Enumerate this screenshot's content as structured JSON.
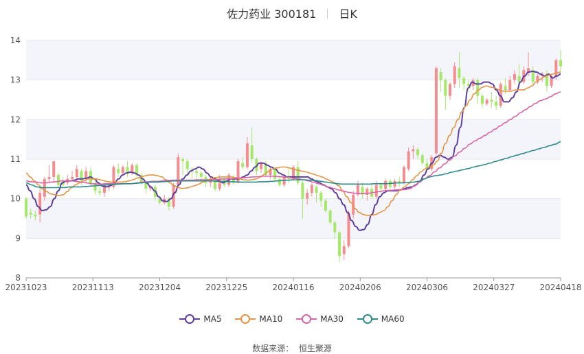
{
  "title": {
    "name": "佐力药业 300181",
    "period": "日K"
  },
  "source": {
    "label": "数据来源：",
    "value": "恒生聚源"
  },
  "colors": {
    "up": "#f48d8f",
    "down": "#a5e86a",
    "MA5": "#5e3e9e",
    "MA10": "#e39545",
    "MA30": "#d865a7",
    "MA60": "#2d8a8a"
  },
  "chart_data": {
    "type": "candlestick",
    "ylim": [
      8,
      14
    ],
    "y_ticks": [
      "8",
      "9",
      "10",
      "11",
      "12",
      "13",
      "14"
    ],
    "x_ticks": [
      "20231023",
      "20231113",
      "20231204",
      "20231225",
      "20240116",
      "20240206",
      "20240306",
      "20240327",
      "20240418"
    ],
    "legend": [
      "MA5",
      "MA10",
      "MA30",
      "MA60"
    ],
    "legend_position": "bottom",
    "grid": true,
    "candles": [
      [
        10.0,
        9.55,
        10.05,
        9.5
      ],
      [
        9.65,
        9.6,
        9.75,
        9.5
      ],
      [
        9.6,
        9.55,
        9.7,
        9.45
      ],
      [
        9.6,
        10.15,
        10.3,
        9.4
      ],
      [
        10.05,
        10.5,
        10.55,
        9.95
      ],
      [
        10.5,
        10.55,
        10.85,
        10.4
      ],
      [
        10.55,
        10.95,
        10.95,
        10.4
      ],
      [
        10.6,
        10.35,
        10.65,
        10.3
      ],
      [
        10.45,
        10.35,
        10.55,
        10.3
      ],
      [
        10.4,
        10.5,
        10.6,
        10.35
      ],
      [
        10.5,
        10.55,
        10.7,
        10.45
      ],
      [
        10.55,
        10.75,
        10.85,
        10.4
      ],
      [
        10.7,
        10.45,
        10.75,
        10.35
      ],
      [
        10.5,
        10.7,
        10.8,
        10.4
      ],
      [
        10.7,
        10.4,
        10.8,
        10.35
      ],
      [
        10.4,
        10.2,
        10.45,
        10.1
      ],
      [
        10.2,
        10.15,
        10.3,
        10.05
      ],
      [
        10.15,
        10.35,
        10.4,
        10.05
      ],
      [
        10.3,
        10.3,
        10.4,
        10.2
      ],
      [
        10.3,
        10.8,
        10.85,
        10.25
      ],
      [
        10.75,
        10.65,
        10.9,
        10.55
      ],
      [
        10.65,
        10.8,
        10.85,
        10.6
      ],
      [
        10.8,
        10.65,
        10.95,
        10.55
      ],
      [
        10.65,
        10.85,
        10.9,
        10.6
      ],
      [
        10.85,
        10.6,
        10.9,
        10.55
      ],
      [
        10.6,
        10.4,
        10.65,
        10.35
      ],
      [
        10.4,
        10.25,
        10.45,
        10.15
      ],
      [
        10.25,
        10.3,
        10.35,
        10.2
      ],
      [
        10.3,
        10.05,
        10.35,
        9.95
      ],
      [
        10.0,
        9.9,
        10.05,
        9.85
      ],
      [
        9.9,
        10.0,
        10.1,
        9.85
      ],
      [
        10.0,
        9.8,
        10.05,
        9.7
      ],
      [
        9.8,
        10.35,
        10.4,
        9.75
      ],
      [
        10.35,
        11.05,
        11.15,
        10.3
      ],
      [
        11.0,
        10.95,
        11.05,
        10.6
      ],
      [
        10.95,
        10.75,
        11.0,
        10.6
      ],
      [
        10.75,
        10.7,
        10.8,
        10.5
      ],
      [
        10.7,
        10.65,
        10.75,
        10.45
      ],
      [
        10.65,
        10.55,
        10.7,
        10.4
      ],
      [
        10.55,
        10.4,
        10.6,
        10.3
      ],
      [
        10.4,
        10.5,
        10.55,
        10.3
      ],
      [
        10.5,
        10.25,
        10.55,
        10.2
      ],
      [
        10.25,
        10.5,
        10.6,
        10.2
      ],
      [
        10.5,
        10.35,
        10.55,
        10.3
      ],
      [
        10.35,
        10.6,
        10.65,
        10.3
      ],
      [
        10.55,
        10.4,
        10.6,
        10.35
      ],
      [
        10.4,
        10.95,
        11.0,
        10.4
      ],
      [
        10.9,
        10.8,
        11.05,
        10.75
      ],
      [
        10.8,
        11.4,
        11.55,
        10.75
      ],
      [
        11.35,
        11.0,
        11.8,
        10.9
      ],
      [
        11.0,
        10.7,
        11.05,
        10.6
      ],
      [
        10.75,
        10.9,
        10.95,
        10.65
      ],
      [
        10.9,
        10.6,
        10.95,
        10.55
      ],
      [
        10.6,
        10.75,
        10.8,
        10.5
      ],
      [
        10.75,
        10.5,
        10.8,
        10.45
      ],
      [
        10.5,
        10.35,
        10.55,
        10.3
      ],
      [
        10.35,
        10.55,
        10.6,
        10.3
      ],
      [
        10.55,
        10.5,
        10.8,
        10.4
      ],
      [
        10.5,
        10.8,
        10.85,
        10.45
      ],
      [
        10.8,
        10.4,
        10.95,
        10.35
      ],
      [
        10.4,
        10.0,
        10.45,
        9.5
      ],
      [
        10.0,
        10.15,
        10.25,
        9.85
      ],
      [
        10.15,
        10.35,
        10.4,
        10.05
      ],
      [
        10.3,
        10.15,
        10.35,
        9.9
      ],
      [
        10.15,
        9.95,
        10.2,
        9.8
      ],
      [
        9.95,
        9.7,
        10.0,
        9.65
      ],
      [
        9.7,
        9.4,
        9.75,
        9.35
      ],
      [
        9.4,
        9.15,
        9.45,
        9.0
      ],
      [
        9.15,
        8.55,
        9.2,
        8.4
      ],
      [
        8.6,
        8.8,
        8.95,
        8.45
      ],
      [
        8.8,
        9.65,
        9.7,
        8.75
      ],
      [
        9.6,
        10.1,
        10.2,
        9.5
      ],
      [
        10.1,
        10.35,
        10.45,
        10.05
      ],
      [
        10.3,
        10.1,
        10.4,
        10.0
      ],
      [
        10.1,
        10.25,
        10.3,
        9.95
      ],
      [
        10.25,
        10.05,
        10.35,
        10.0
      ],
      [
        10.05,
        10.35,
        10.45,
        10.0
      ],
      [
        10.35,
        10.25,
        10.4,
        10.15
      ],
      [
        10.25,
        10.45,
        10.5,
        10.2
      ],
      [
        10.45,
        10.3,
        10.5,
        10.2
      ],
      [
        10.3,
        10.45,
        10.5,
        10.25
      ],
      [
        10.45,
        10.4,
        10.55,
        10.3
      ],
      [
        10.4,
        10.8,
        10.85,
        10.35
      ],
      [
        10.75,
        11.2,
        11.3,
        10.7
      ],
      [
        11.2,
        11.25,
        11.35,
        11.0
      ],
      [
        11.25,
        11.1,
        11.3,
        11.0
      ],
      [
        11.1,
        10.9,
        11.15,
        10.85
      ],
      [
        10.9,
        10.75,
        11.0,
        10.7
      ],
      [
        10.75,
        11.05,
        11.1,
        10.7
      ],
      [
        11.15,
        13.3,
        13.35,
        11.1
      ],
      [
        13.2,
        13.0,
        13.3,
        12.7
      ],
      [
        13.0,
        12.6,
        13.05,
        12.25
      ],
      [
        12.6,
        12.9,
        12.95,
        12.5
      ],
      [
        12.9,
        13.35,
        13.45,
        12.8
      ],
      [
        13.3,
        13.05,
        13.7,
        12.8
      ],
      [
        13.05,
        12.9,
        13.1,
        12.75
      ],
      [
        12.9,
        12.85,
        13.0,
        12.7
      ],
      [
        12.85,
        13.0,
        13.05,
        12.75
      ],
      [
        13.0,
        12.6,
        13.05,
        12.4
      ],
      [
        12.6,
        12.4,
        12.65,
        12.3
      ],
      [
        12.4,
        12.5,
        12.55,
        12.35
      ],
      [
        12.5,
        12.45,
        12.7,
        12.3
      ],
      [
        12.45,
        12.35,
        12.6,
        12.25
      ],
      [
        12.35,
        12.9,
        12.95,
        12.3
      ],
      [
        12.85,
        12.75,
        13.05,
        12.65
      ],
      [
        12.75,
        13.0,
        13.1,
        12.7
      ],
      [
        13.0,
        13.15,
        13.25,
        12.9
      ],
      [
        13.1,
        12.95,
        13.4,
        12.85
      ],
      [
        12.95,
        13.25,
        13.35,
        12.9
      ],
      [
        13.2,
        13.3,
        13.7,
        13.1
      ],
      [
        13.25,
        12.95,
        13.35,
        12.85
      ],
      [
        12.95,
        13.1,
        13.15,
        12.9
      ],
      [
        13.1,
        13.15,
        13.2,
        12.95
      ],
      [
        13.15,
        12.85,
        13.25,
        12.7
      ],
      [
        12.85,
        13.1,
        13.15,
        12.8
      ],
      [
        13.1,
        13.5,
        13.55,
        13.0
      ],
      [
        13.5,
        13.35,
        13.75,
        13.2
      ]
    ],
    "series": [
      {
        "name": "MA5",
        "values": [
          10.35,
          10.2,
          10.0,
          9.8,
          9.7,
          9.72,
          9.8,
          10.0,
          10.2,
          10.4,
          10.45,
          10.45,
          10.47,
          10.5,
          10.5,
          10.52,
          10.55,
          10.5,
          10.4,
          10.32,
          10.3,
          10.33,
          10.4,
          10.5,
          10.6,
          10.65,
          10.67,
          10.65,
          10.6,
          10.5,
          10.4,
          10.3,
          10.2,
          10.05,
          9.95,
          9.93,
          10.0,
          10.15,
          10.35,
          10.5,
          10.6,
          10.7,
          10.75,
          10.8,
          10.75,
          10.65,
          10.55,
          10.5,
          10.45,
          10.4,
          10.45,
          10.5,
          10.5,
          10.5,
          10.55,
          10.6,
          10.7,
          10.8,
          10.9,
          10.9,
          10.85,
          10.8,
          10.75,
          10.65,
          10.6,
          10.55,
          10.55,
          10.55,
          10.55,
          10.55,
          10.55,
          10.5,
          10.45,
          10.4,
          10.35,
          10.3,
          10.25,
          10.15,
          10.0,
          9.85,
          9.65,
          9.45,
          9.3,
          9.2,
          9.22,
          9.35,
          9.6,
          9.85,
          10.05,
          10.15,
          10.2,
          10.2,
          10.2,
          10.22,
          10.25,
          10.28,
          10.3,
          10.35,
          10.45,
          10.6,
          10.75,
          10.9,
          11.05,
          11.1,
          11.05,
          11.0,
          11.05,
          11.35,
          11.8,
          12.3,
          12.8,
          12.95,
          12.9,
          12.9,
          12.95,
          12.95,
          12.9,
          12.75,
          12.6,
          12.45,
          12.45,
          12.55,
          12.7,
          12.95,
          13.1,
          13.2,
          13.22,
          13.2,
          13.15,
          13.1,
          13.15,
          13.05,
          13.1,
          13.15
        ]
      },
      {
        "name": "MA10",
        "values": [
          10.65,
          10.55,
          10.45,
          10.35,
          10.25,
          10.18,
          10.12,
          10.1,
          10.08,
          10.1,
          10.18,
          10.28,
          10.35,
          10.4,
          10.45,
          10.5,
          10.5,
          10.5,
          10.48,
          10.45,
          10.43,
          10.42,
          10.42,
          10.42,
          10.43,
          10.45,
          10.48,
          10.52,
          10.55,
          10.58,
          10.6,
          10.6,
          10.58,
          10.55,
          10.48,
          10.4,
          10.33,
          10.28,
          10.26,
          10.27,
          10.3,
          10.33,
          10.37,
          10.42,
          10.46,
          10.5,
          10.53,
          10.55,
          10.55,
          10.55,
          10.55,
          10.53,
          10.5,
          10.48,
          10.47,
          10.48,
          10.5,
          10.55,
          10.62,
          10.7,
          10.75,
          10.78,
          10.8,
          10.8,
          10.78,
          10.75,
          10.72,
          10.7,
          10.68,
          10.65,
          10.62,
          10.58,
          10.55,
          10.5,
          10.45,
          10.4,
          10.33,
          10.2,
          10.05,
          9.9,
          9.75,
          9.65,
          9.6,
          9.58,
          9.58,
          9.6,
          9.65,
          9.7,
          9.8,
          9.95,
          10.1,
          10.22,
          10.3,
          10.38,
          10.48,
          10.58,
          10.68,
          10.75,
          10.8,
          10.85,
          10.95,
          11.15,
          11.4,
          11.6,
          11.8,
          12.0,
          12.2,
          12.35,
          12.5,
          12.65,
          12.75,
          12.82,
          12.85,
          12.82,
          12.8,
          12.75,
          12.72,
          12.72,
          12.72,
          12.75,
          12.75,
          12.75,
          12.8,
          12.85,
          12.95,
          13.02,
          13.08,
          13.12,
          13.15,
          13.18,
          13.2
        ]
      },
      {
        "name": "MA30",
        "values": [
          10.45,
          10.43,
          10.42,
          10.4,
          10.4,
          10.42,
          10.43,
          10.45,
          10.45,
          10.45,
          10.44,
          10.42,
          10.4,
          10.38,
          10.37,
          10.37,
          10.38,
          10.38,
          10.38,
          10.38,
          10.38,
          10.38,
          10.4,
          10.42,
          10.43,
          10.44,
          10.44,
          10.45,
          10.46,
          10.47,
          10.47,
          10.47,
          10.47,
          10.47,
          10.48,
          10.48,
          10.48,
          10.48,
          10.49,
          10.5,
          10.5,
          10.51,
          10.52,
          10.53,
          10.54,
          10.55,
          10.56,
          10.57,
          10.57,
          10.57,
          10.56,
          10.55,
          10.54,
          10.52,
          10.5,
          10.48,
          10.45,
          10.42,
          10.38,
          10.34,
          10.3,
          10.26,
          10.22,
          10.19,
          10.16,
          10.14,
          10.13,
          10.13,
          10.14,
          10.16,
          10.18,
          10.2,
          10.21,
          10.22,
          10.23,
          10.23,
          10.25,
          10.32,
          10.42,
          10.5,
          10.58,
          10.68,
          10.78,
          10.88,
          10.98,
          11.08,
          11.18,
          11.28,
          11.38,
          11.46,
          11.53,
          11.6,
          11.68,
          11.76,
          11.84,
          11.92,
          12.0,
          12.08,
          12.17,
          12.25,
          12.33,
          12.41,
          12.48,
          12.52,
          12.58,
          12.65,
          12.7
        ]
      },
      {
        "name": "MA60",
        "values": [
          10.4,
          10.35,
          10.3,
          10.28,
          10.28,
          10.28,
          10.28,
          10.28,
          10.3,
          10.3,
          10.3,
          10.31,
          10.32,
          10.33,
          10.34,
          10.35,
          10.36,
          10.37,
          10.38,
          10.38,
          10.39,
          10.4,
          10.41,
          10.42,
          10.42,
          10.43,
          10.44,
          10.45,
          10.45,
          10.45,
          10.45,
          10.45,
          10.45,
          10.45,
          10.45,
          10.44,
          10.44,
          10.43,
          10.43,
          10.42,
          10.42,
          10.42,
          10.42,
          10.43,
          10.43,
          10.44,
          10.45,
          10.46,
          10.47,
          10.48,
          10.48,
          10.48,
          10.47,
          10.46,
          10.44,
          10.42,
          10.4,
          10.38,
          10.37,
          10.37,
          10.37,
          10.37,
          10.37,
          10.37,
          10.38,
          10.38,
          10.38,
          10.39,
          10.4,
          10.4,
          10.41,
          10.42,
          10.44,
          10.5,
          10.55,
          10.58,
          10.6,
          10.63,
          10.67,
          10.7,
          10.73,
          10.76,
          10.8,
          10.83,
          10.86,
          10.9,
          10.94,
          10.98,
          11.02,
          11.06,
          11.1,
          11.14,
          11.18,
          11.22,
          11.26,
          11.3,
          11.34,
          11.38,
          11.44
        ]
      }
    ]
  }
}
